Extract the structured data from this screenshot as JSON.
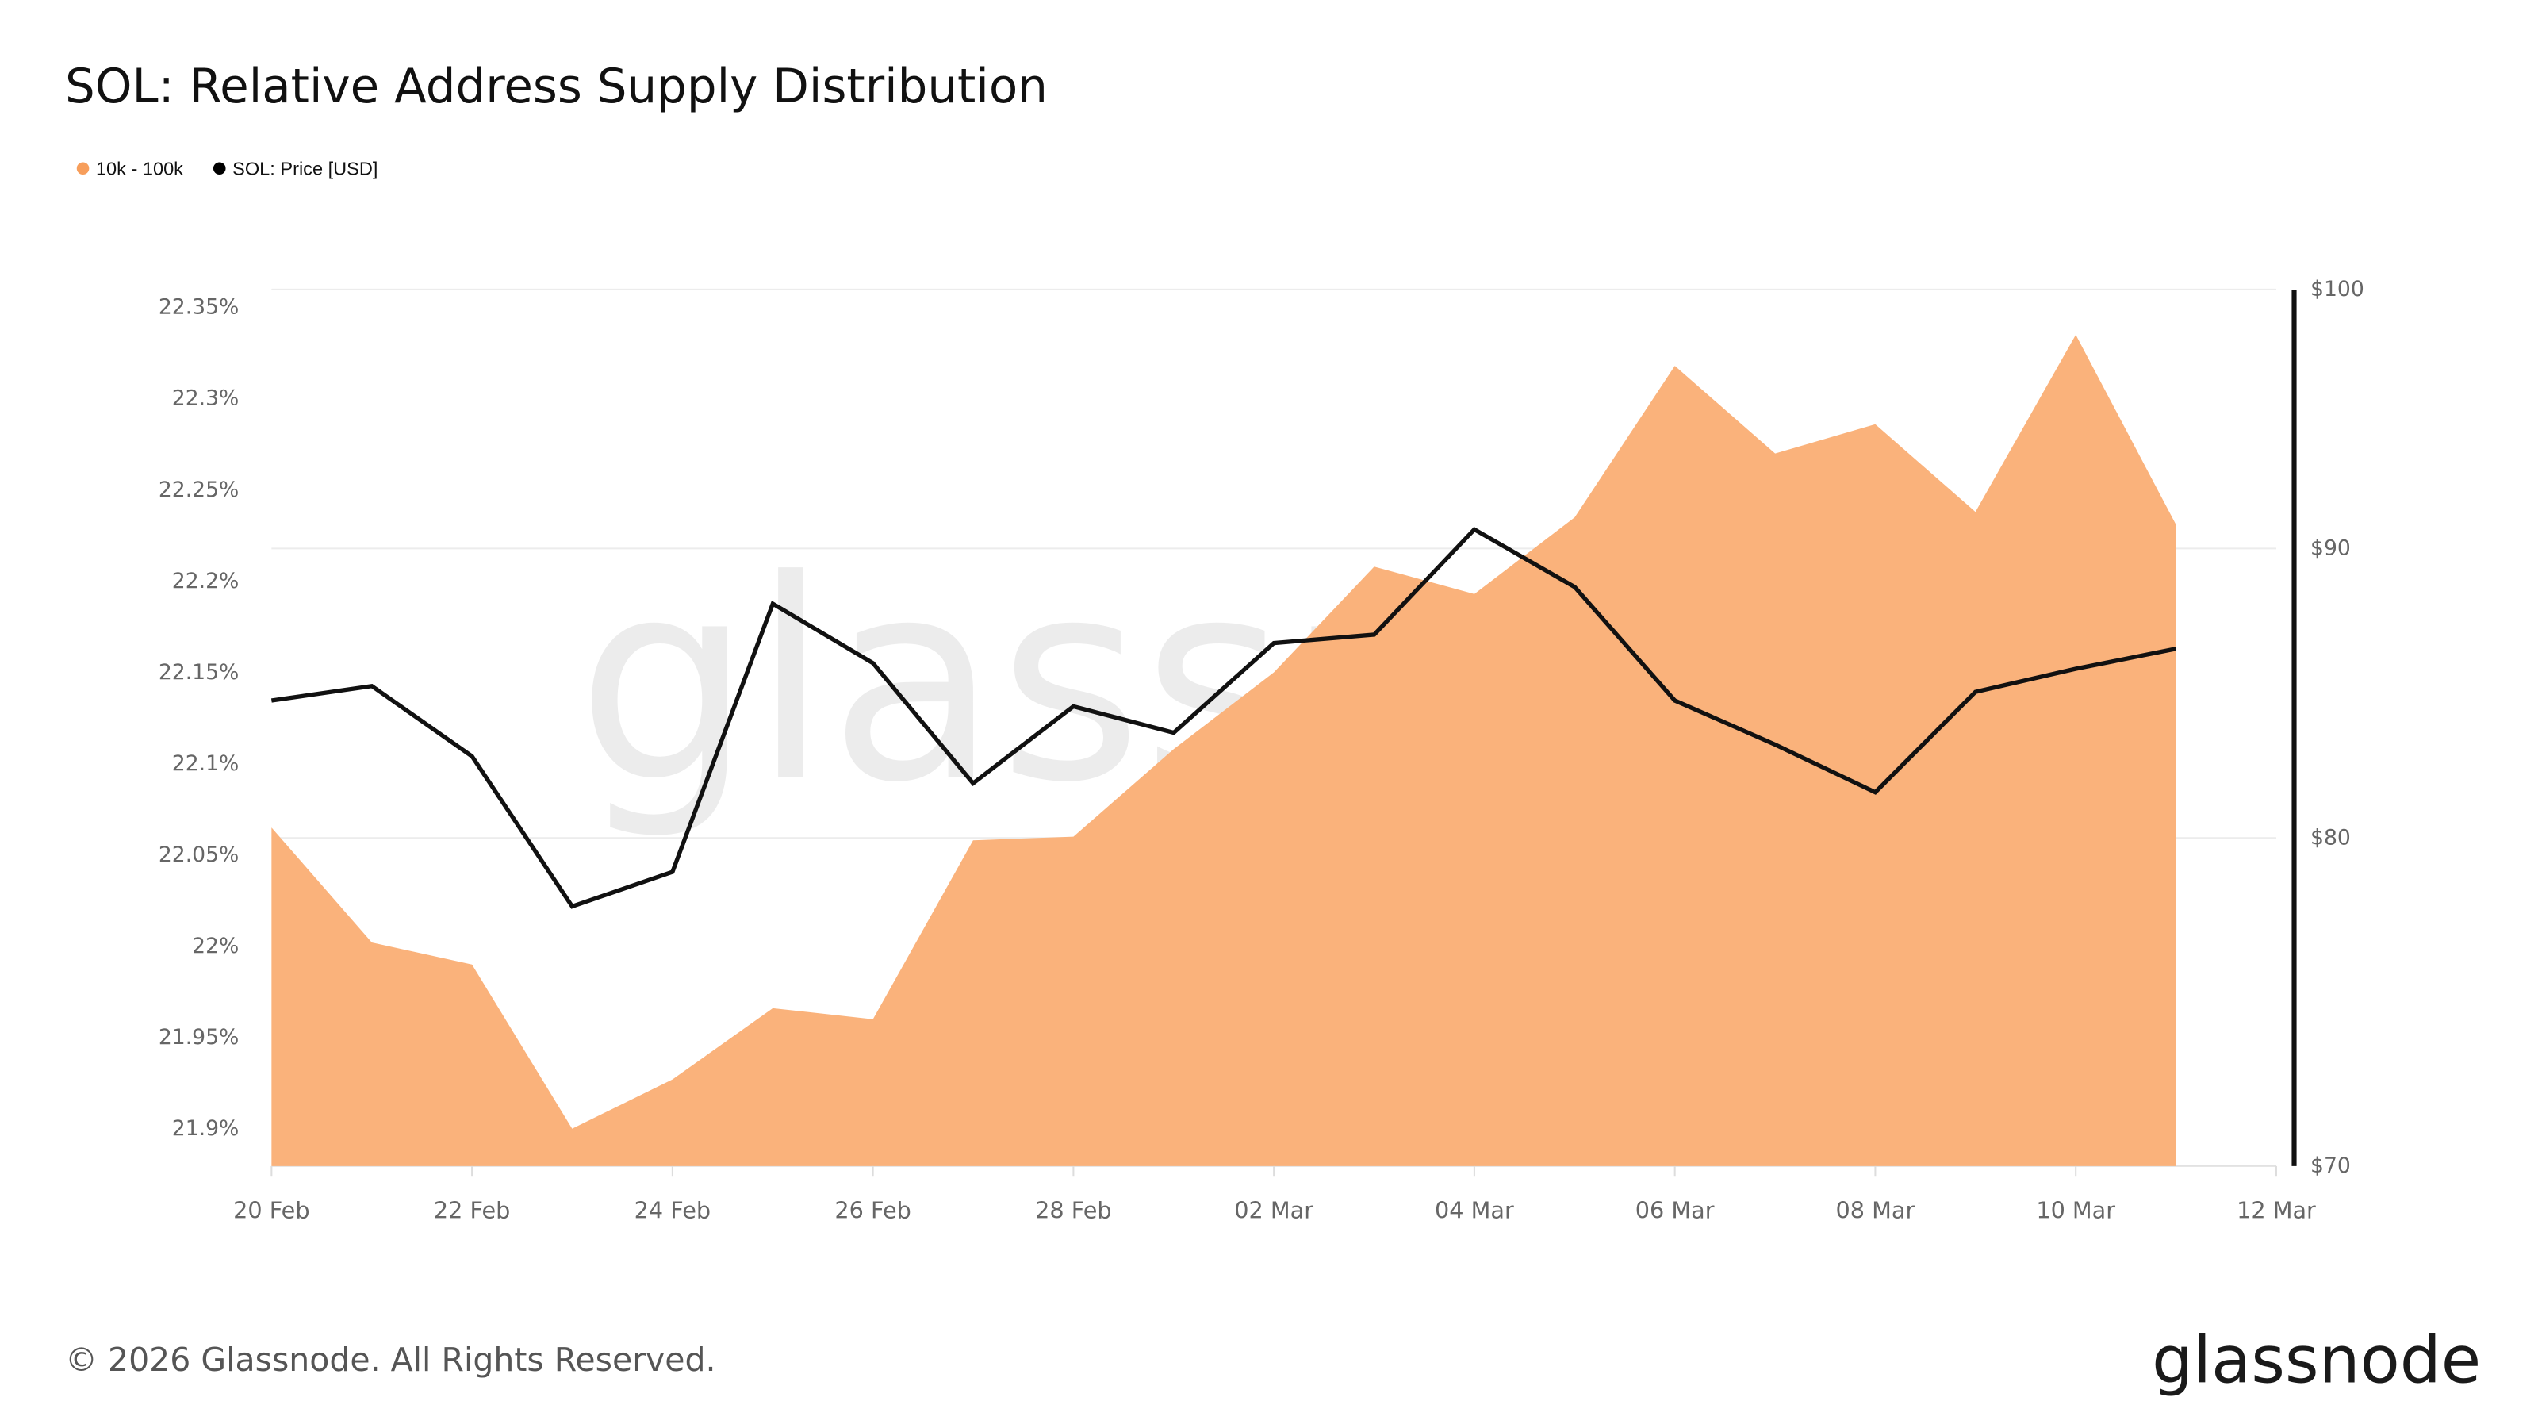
{
  "title": "SOL: Relative Address Supply Distribution",
  "footer": {
    "copyright": "© 2026 Glassnode. All Rights Reserved.",
    "logo": "glassnode",
    "watermark": "glassnode"
  },
  "colors": {
    "area_fill": "#FAB27B",
    "legend_orange": "#F79E5B",
    "price_line": "#111111",
    "grid": "#ececec"
  },
  "chart_data": {
    "type": "area",
    "title": "SOL: Relative Address Supply Distribution",
    "legend": [
      "10k - 100k",
      "SOL: Price [USD]"
    ],
    "legend_placement": "top-left",
    "grid": true,
    "x": [
      "2026-02-20",
      "2026-02-21",
      "2026-02-22",
      "2026-02-23",
      "2026-02-24",
      "2026-02-25",
      "2026-02-26",
      "2026-02-27",
      "2026-02-28",
      "2026-03-01",
      "2026-03-02",
      "2026-03-03",
      "2026-03-04",
      "2026-03-05",
      "2026-03-06",
      "2026-03-07",
      "2026-03-08",
      "2026-03-09",
      "2026-03-10",
      "2026-03-11"
    ],
    "xticks": [
      "20 Feb",
      "22 Feb",
      "24 Feb",
      "26 Feb",
      "28 Feb",
      "02 Mar",
      "04 Mar",
      "06 Mar",
      "08 Mar",
      "10 Mar",
      "12 Mar"
    ],
    "xtick_dates": [
      "2026-02-20",
      "2026-02-22",
      "2026-02-24",
      "2026-02-26",
      "2026-02-28",
      "2026-03-02",
      "2026-03-04",
      "2026-03-06",
      "2026-03-08",
      "2026-03-10",
      "2026-03-12"
    ],
    "xlim": [
      "2026-02-20",
      "2026-03-12"
    ],
    "y_left": {
      "ticks": [
        "22.35%",
        "22.3%",
        "22.25%",
        "22.2%",
        "22.15%",
        "22.1%",
        "22.05%",
        "22%",
        "21.95%",
        "21.9%"
      ],
      "tick_values": [
        22.35,
        22.3,
        22.25,
        22.2,
        22.15,
        22.1,
        22.05,
        22.0,
        21.95,
        21.9
      ],
      "scale": "linear"
    },
    "y_right": {
      "ticks": [
        "$100",
        "$90",
        "$80",
        "$70"
      ],
      "tick_values": [
        100,
        90,
        80,
        70
      ],
      "range": [
        70,
        100
      ],
      "scale": "log"
    },
    "series": [
      {
        "name": "10k - 100k",
        "type": "area",
        "axis": "left",
        "unit": "%",
        "values": [
          22.065,
          22.002,
          21.99,
          21.9,
          21.927,
          21.966,
          21.96,
          22.058,
          22.06,
          22.108,
          22.15,
          22.208,
          22.193,
          22.235,
          22.318,
          22.27,
          22.286,
          22.238,
          22.335,
          22.231
        ]
      },
      {
        "name": "SOL: Price [USD]",
        "type": "line",
        "axis": "right",
        "unit": "USD",
        "values": [
          84.6,
          85.1,
          82.7,
          77.8,
          78.9,
          88.0,
          85.9,
          81.8,
          84.4,
          83.5,
          86.6,
          86.9,
          90.7,
          88.6,
          84.6,
          83.1,
          81.5,
          84.9,
          85.7,
          86.4
        ]
      }
    ]
  }
}
